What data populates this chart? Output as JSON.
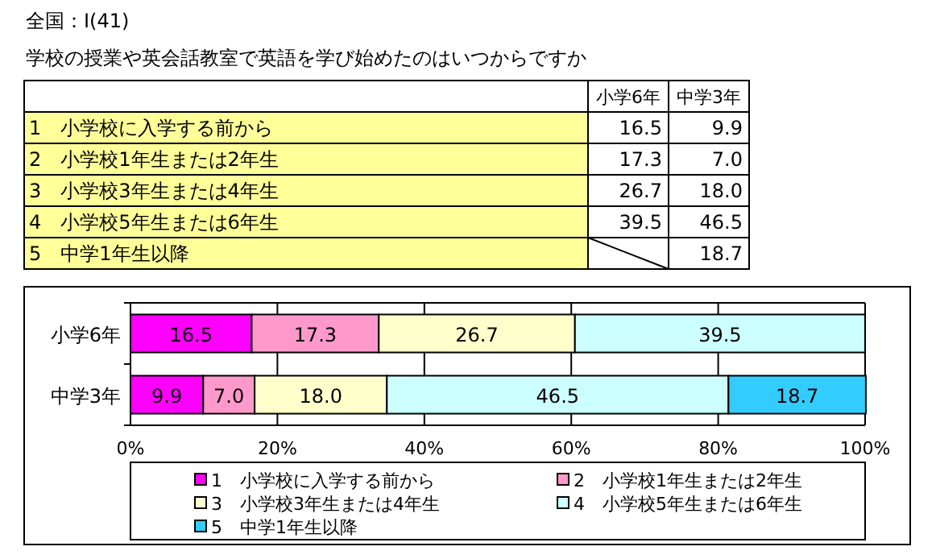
{
  "chart_data": {
    "type": "bar",
    "orientation": "horizontal",
    "stacked": true,
    "title": "全国：Ⅰ(41)",
    "subtitle": "学校の授業や英会話教室で英語を学び始めたのはいつからですか",
    "categories": [
      "小学6年",
      "中学3年"
    ],
    "series": [
      {
        "name": "1　小学校に入学する前から",
        "color": "#ff00ff",
        "values": [
          16.5,
          9.9
        ],
        "value_labels": [
          "16.5",
          "9.9"
        ]
      },
      {
        "name": "2　小学校1年生または2年生",
        "color": "#ff99cc",
        "values": [
          17.3,
          7.0
        ],
        "value_labels": [
          "17.3",
          "7.0"
        ]
      },
      {
        "name": "3　小学校3年生または4年生",
        "color": "#ffffcc",
        "values": [
          26.7,
          18.0
        ],
        "value_labels": [
          "26.7",
          "18.0"
        ]
      },
      {
        "name": "4　小学校5年生または6年生",
        "color": "#ccffff",
        "values": [
          39.5,
          46.5
        ],
        "value_labels": [
          "39.5",
          "46.5"
        ]
      },
      {
        "name": "5　中学1年生以降",
        "color": "#33ccff",
        "values": [
          null,
          18.7
        ],
        "value_labels": [
          null,
          "18.7"
        ]
      }
    ],
    "xlim": [
      0,
      100
    ],
    "xticks": [
      {
        "value": 0,
        "label": "0%"
      },
      {
        "value": 20,
        "label": "20%"
      },
      {
        "value": 40,
        "label": "40%"
      },
      {
        "value": 60,
        "label": "60%"
      },
      {
        "value": 80,
        "label": "80%"
      },
      {
        "value": 100,
        "label": "100%"
      }
    ],
    "grid": "x",
    "legend": "bottom"
  }
}
